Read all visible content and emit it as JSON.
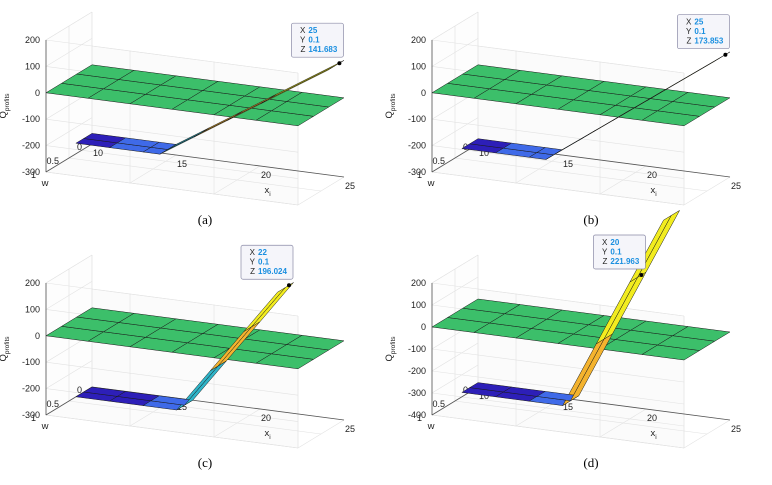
{
  "colors": {
    "plane": "#3cbf6a",
    "plane_dark": "#2f9f57",
    "deep": "#2d1fb8",
    "mid": "#3f6ae8",
    "teal": "#2fb4c8",
    "orange": "#f4b32e",
    "yellow": "#f2ec1f",
    "grid": "#e2e2e2",
    "axis": "#555555"
  },
  "chart_data": [
    {
      "type": "surface3d",
      "caption": "(a)",
      "zlabel": "Q_profits",
      "zlabel_main": "Q",
      "zlabel_sub": "profits",
      "xlabel": "x",
      "xlabel_sub": "i",
      "ylabel": "w",
      "x_ticks": [
        "10",
        "15",
        "20",
        "25"
      ],
      "y_ticks": [
        "0",
        "0.5",
        "1"
      ],
      "z_ticks": [
        "200",
        "100",
        "0",
        "-100",
        "-200",
        "-300"
      ],
      "xlim": [
        10,
        25
      ],
      "ylim": [
        0,
        1
      ],
      "zlim": [
        -300,
        200
      ],
      "surface_min_z": -260,
      "breakpoint_x": 15,
      "datatip": {
        "x": "25",
        "y": "0.1",
        "z": "141.683",
        "x_label": "X",
        "y_label": "Y",
        "z_label": "Z"
      }
    },
    {
      "type": "surface3d",
      "caption": "(b)",
      "zlabel": "Q_profits",
      "zlabel_main": "Q",
      "zlabel_sub": "profits",
      "xlabel": "x",
      "xlabel_sub": "i",
      "ylabel": "w",
      "x_ticks": [
        "10",
        "15",
        "20",
        "25"
      ],
      "y_ticks": [
        "0",
        "0.5",
        "1"
      ],
      "z_ticks": [
        "200",
        "100",
        "0",
        "-100",
        "-200",
        "-300"
      ],
      "xlim": [
        10,
        25
      ],
      "ylim": [
        0,
        1
      ],
      "zlim": [
        -300,
        200
      ],
      "surface_min_z": -280,
      "breakpoint_x": 15,
      "datatip": {
        "x": "25",
        "y": "0.1",
        "z": "173.853",
        "x_label": "X",
        "y_label": "Y",
        "z_label": "Z"
      }
    },
    {
      "type": "surface3d",
      "caption": "(c)",
      "zlabel": "Q_profits",
      "zlabel_main": "Q",
      "zlabel_sub": "profits",
      "xlabel": "x",
      "xlabel_sub": "i",
      "ylabel": "w",
      "x_ticks": [
        "10",
        "15",
        "20",
        "25"
      ],
      "y_ticks": [
        "0",
        "0.5",
        "1"
      ],
      "z_ticks": [
        "200",
        "100",
        "0",
        "-100",
        "-200",
        "-300"
      ],
      "xlim": [
        10,
        25
      ],
      "ylim": [
        0,
        1
      ],
      "zlim": [
        -300,
        200
      ],
      "surface_min_z": -300,
      "breakpoint_x": 16,
      "datatip": {
        "x": "22",
        "y": "0.1",
        "z": "196.024",
        "x_label": "X",
        "y_label": "Y",
        "z_label": "Z"
      }
    },
    {
      "type": "surface3d",
      "caption": "(d)",
      "zlabel": "Q_profits",
      "zlabel_main": "Q",
      "zlabel_sub": "profits",
      "xlabel": "x",
      "xlabel_sub": "i",
      "ylabel": "w",
      "x_ticks": [
        "10",
        "15",
        "20",
        "25"
      ],
      "y_ticks": [
        "0",
        "0.5",
        "1"
      ],
      "z_ticks": [
        "200",
        "100",
        "0",
        "-100",
        "-200",
        "-300",
        "-400"
      ],
      "xlim": [
        10,
        25
      ],
      "ylim": [
        0,
        1
      ],
      "zlim": [
        -400,
        200
      ],
      "surface_min_z": -380,
      "breakpoint_x": 16,
      "datatip": {
        "x": "20",
        "y": "0.1",
        "z": "221.963",
        "x_label": "X",
        "y_label": "Y",
        "z_label": "Z"
      }
    }
  ]
}
